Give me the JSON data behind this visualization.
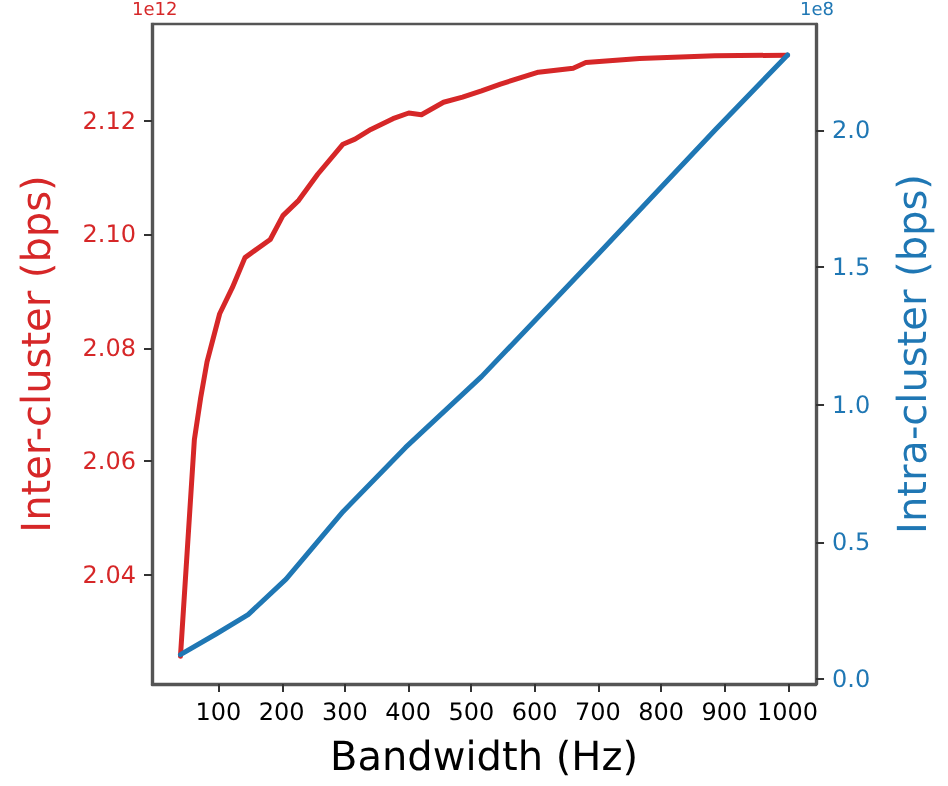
{
  "chart_data": {
    "type": "line",
    "xlabel": "Bandwidth (Hz)",
    "ylabel": "Inter-cluster (bps)",
    "y2label": "Intra-cluster (bps)",
    "annotations": [
      "1e12",
      "1e8"
    ],
    "xlim": [
      -5,
      1045
    ],
    "xticks": [
      100,
      200,
      300,
      400,
      500,
      600,
      700,
      800,
      900,
      1000
    ],
    "ylim": [
      2.0207,
      2.1371
    ],
    "yticks": [
      2.04,
      2.06,
      2.08,
      {
        "value": 2.1,
        "label": "2.10"
      },
      2.12
    ],
    "y2lim": [
      -0.018,
      2.387
    ],
    "y2ticks": [
      {
        "value": 0,
        "label": "0.0"
      },
      0.5,
      {
        "value": 1,
        "label": "1.0"
      },
      1.5,
      {
        "value": 2,
        "label": "2.0"
      }
    ],
    "grid": false,
    "marker": "none",
    "line_style": "solid",
    "series": [
      {
        "color": "#d62728",
        "x": [
          40,
          62,
          72,
          82,
          102,
          122,
          142,
          182,
          202,
          227,
          257,
          297,
          316,
          341,
          376,
          401,
          421,
          456,
          486,
          516,
          546,
          606,
          661,
          681,
          766,
          885,
          1000
        ],
        "values": [
          2.0256,
          2.0638,
          2.0712,
          2.0775,
          2.086,
          2.0906,
          2.0959,
          2.0991,
          2.1033,
          2.106,
          2.1106,
          2.1159,
          2.1168,
          2.1185,
          2.1204,
          2.1214,
          2.1211,
          2.1233,
          2.1242,
          2.1253,
          2.1265,
          2.1286,
          2.1293,
          2.1303,
          2.131,
          2.1315,
          2.1316
        ]
      },
      {
        "color": "#1f77b4",
        "axis": "y2",
        "x": [
          40,
          97,
          147,
          207,
          297,
          396,
          516,
          701,
          885,
          1000
        ],
        "values": [
          0.089,
          0.165,
          0.235,
          0.364,
          0.61,
          0.844,
          1.102,
          1.55,
          2.0,
          2.274
        ]
      }
    ]
  }
}
